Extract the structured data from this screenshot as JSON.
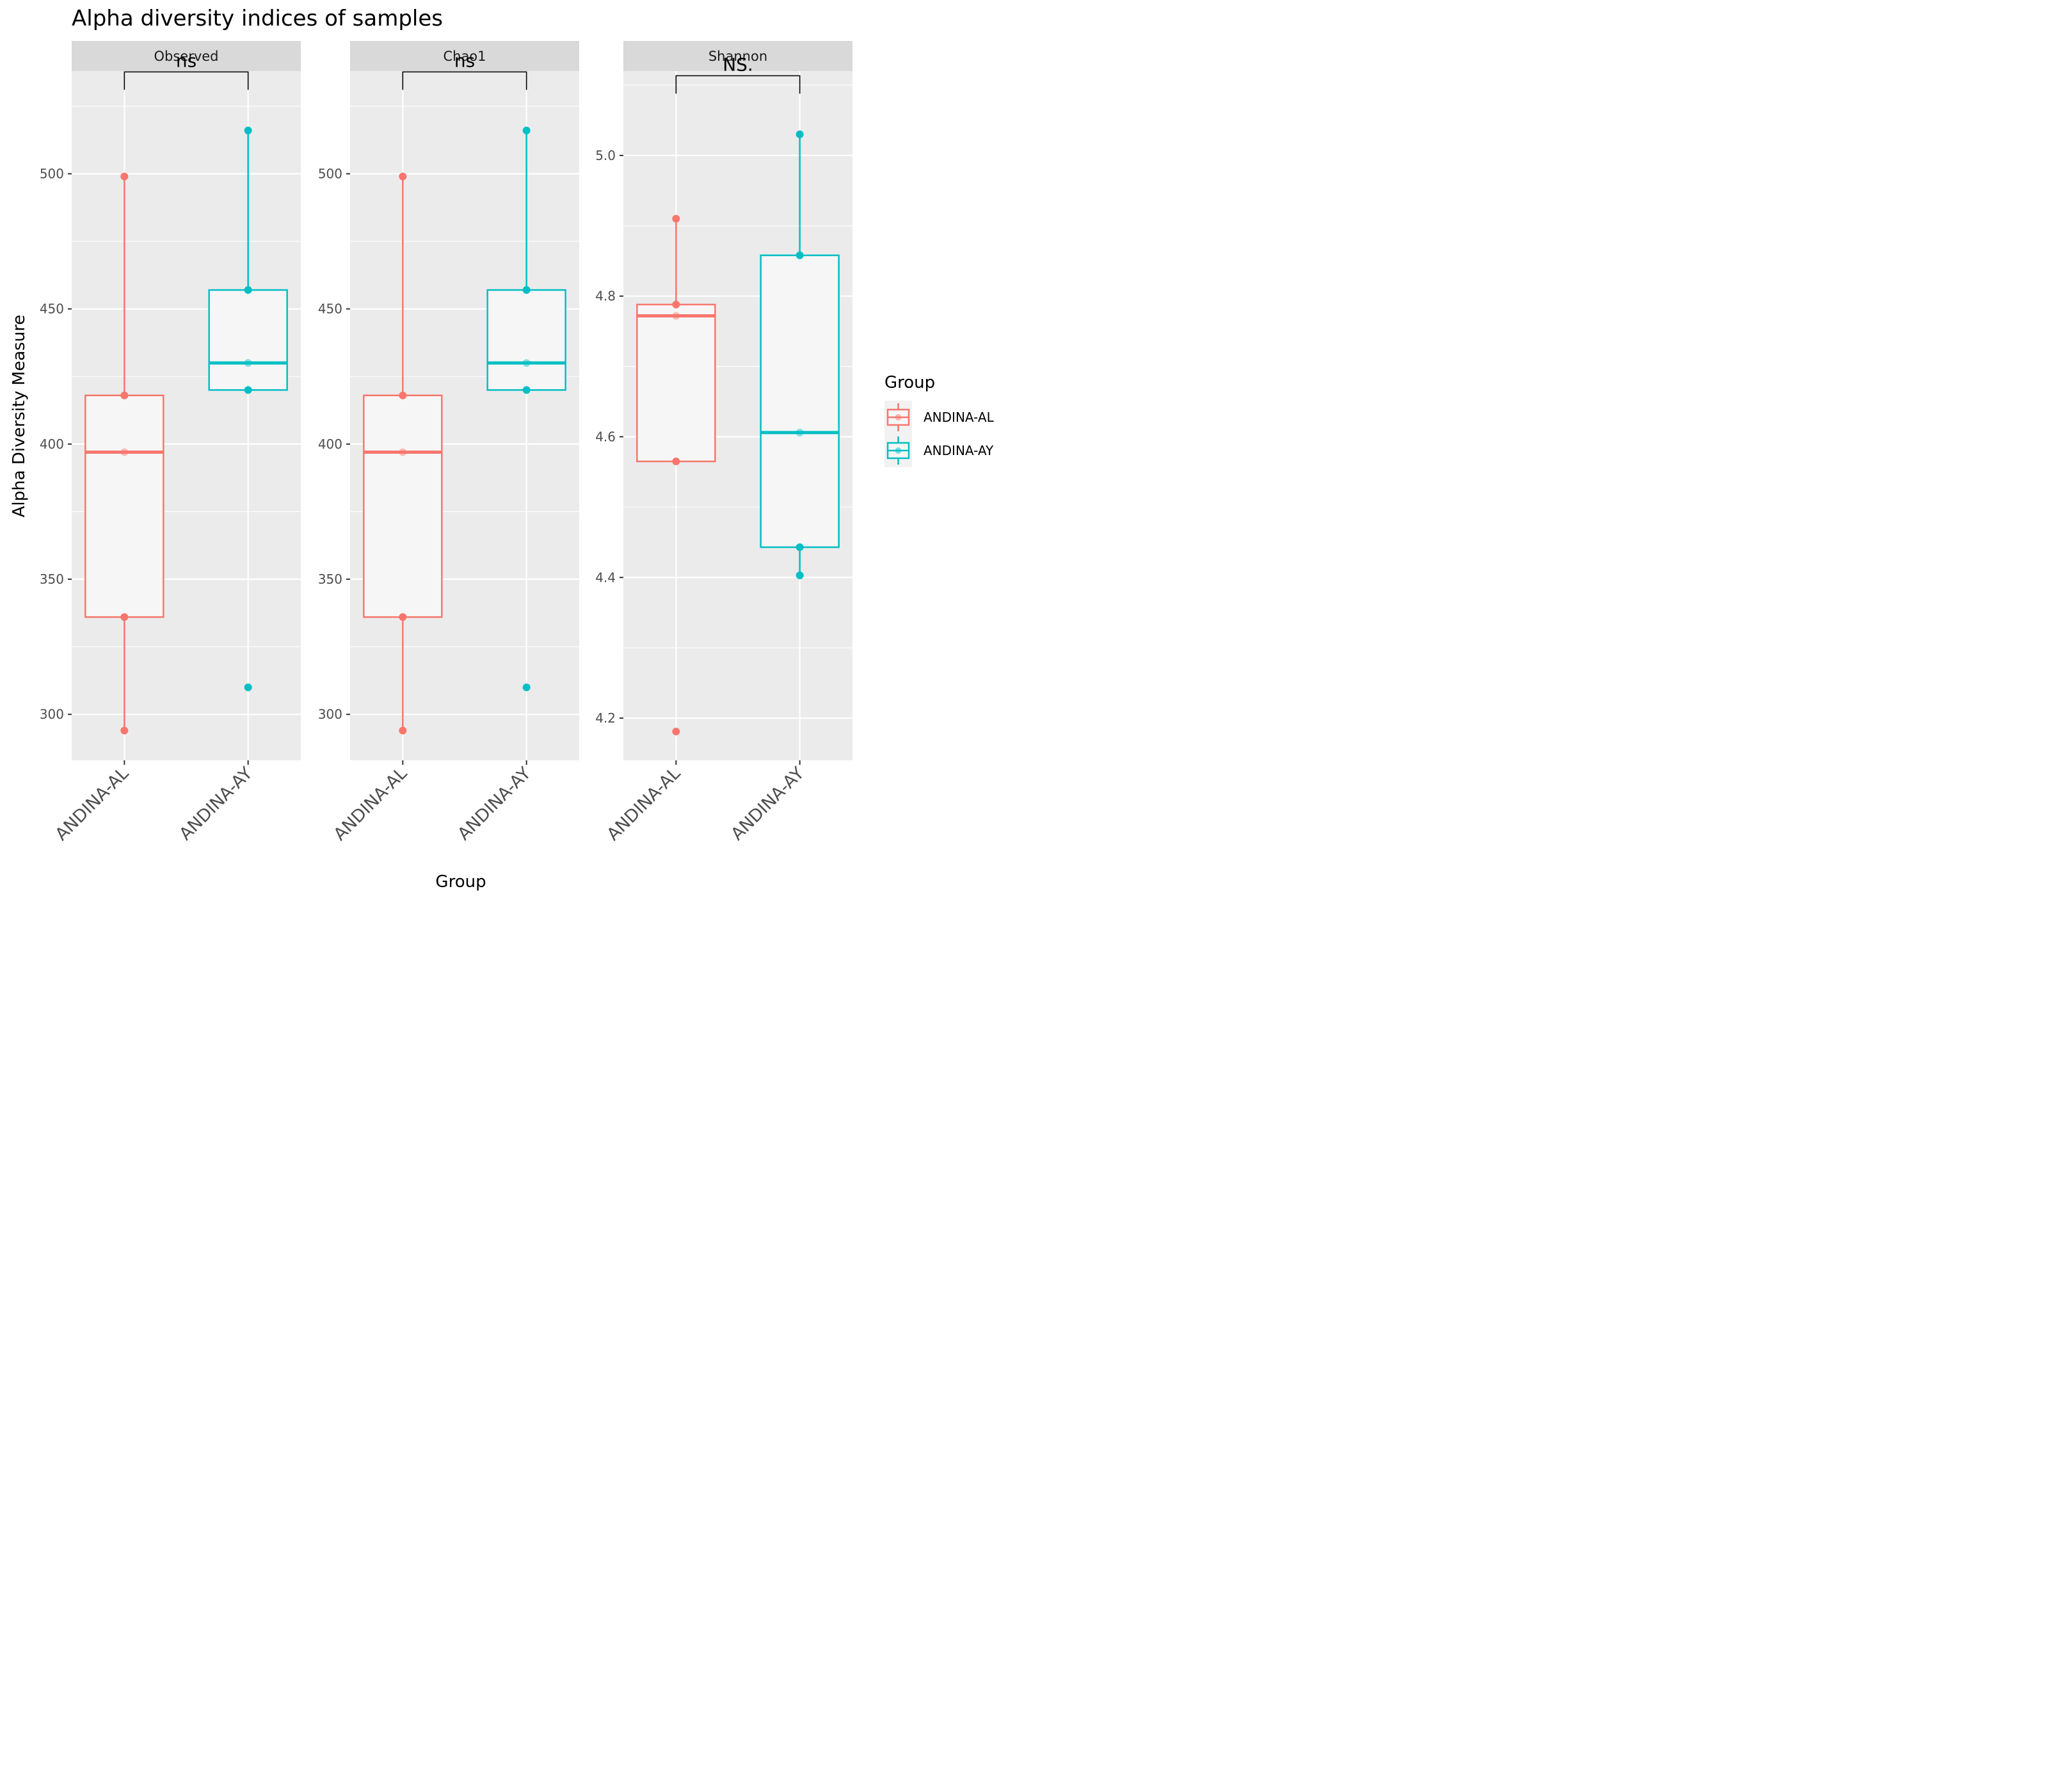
{
  "chart_data": {
    "type": "box",
    "title": "Alpha diversity indices of samples",
    "xlabel": "Group",
    "ylabel": "Alpha Diversity Measure",
    "categories": [
      "ANDINA-AL",
      "ANDINA-AY"
    ],
    "colors": {
      "ANDINA-AL": "#F8766D",
      "ANDINA-AY": "#00BFC4"
    },
    "legend": {
      "title": "Group",
      "position": "right",
      "entries": [
        "ANDINA-AL",
        "ANDINA-AY"
      ]
    },
    "grid": true,
    "panels": [
      {
        "name": "Observed",
        "ylim": [
          283,
          538
        ],
        "yticks": [
          300,
          350,
          400,
          450,
          500
        ],
        "significance": "ns",
        "groups": [
          {
            "group": "ANDINA-AL",
            "min": 294,
            "q1": 336,
            "median": 397,
            "q3": 418,
            "max": 499,
            "points": [
              294,
              336,
              397,
              418,
              499
            ]
          },
          {
            "group": "ANDINA-AY",
            "min": 420,
            "q1": 420,
            "median": 430,
            "q3": 457,
            "max": 516,
            "points": [
              310,
              420,
              430,
              457,
              516
            ]
          }
        ]
      },
      {
        "name": "Chao1",
        "ylim": [
          283,
          538
        ],
        "yticks": [
          300,
          350,
          400,
          450,
          500
        ],
        "significance": "ns",
        "groups": [
          {
            "group": "ANDINA-AL",
            "min": 294,
            "q1": 336,
            "median": 397,
            "q3": 418,
            "max": 499,
            "points": [
              294,
              336,
              397,
              418,
              499
            ]
          },
          {
            "group": "ANDINA-AY",
            "min": 420,
            "q1": 420,
            "median": 430,
            "q3": 457,
            "max": 516,
            "points": [
              310,
              420,
              430,
              457,
              516
            ]
          }
        ]
      },
      {
        "name": "Shannon",
        "ylim": [
          4.14,
          5.12
        ],
        "yticks": [
          4.2,
          4.4,
          4.6,
          4.8,
          5.0
        ],
        "ytick_labels": [
          "4.2",
          "4.4",
          "4.6",
          "4.8",
          "5.0"
        ],
        "significance": "NS.",
        "groups": [
          {
            "group": "ANDINA-AL",
            "min": 4.565,
            "q1": 4.565,
            "median": 4.772,
            "q3": 4.788,
            "max": 4.91,
            "points": [
              4.181,
              4.565,
              4.772,
              4.788,
              4.91
            ]
          },
          {
            "group": "ANDINA-AY",
            "min": 4.403,
            "q1": 4.443,
            "median": 4.606,
            "q3": 4.858,
            "max": 5.03,
            "points": [
              4.403,
              4.443,
              4.606,
              4.858,
              5.03
            ]
          }
        ]
      }
    ]
  }
}
